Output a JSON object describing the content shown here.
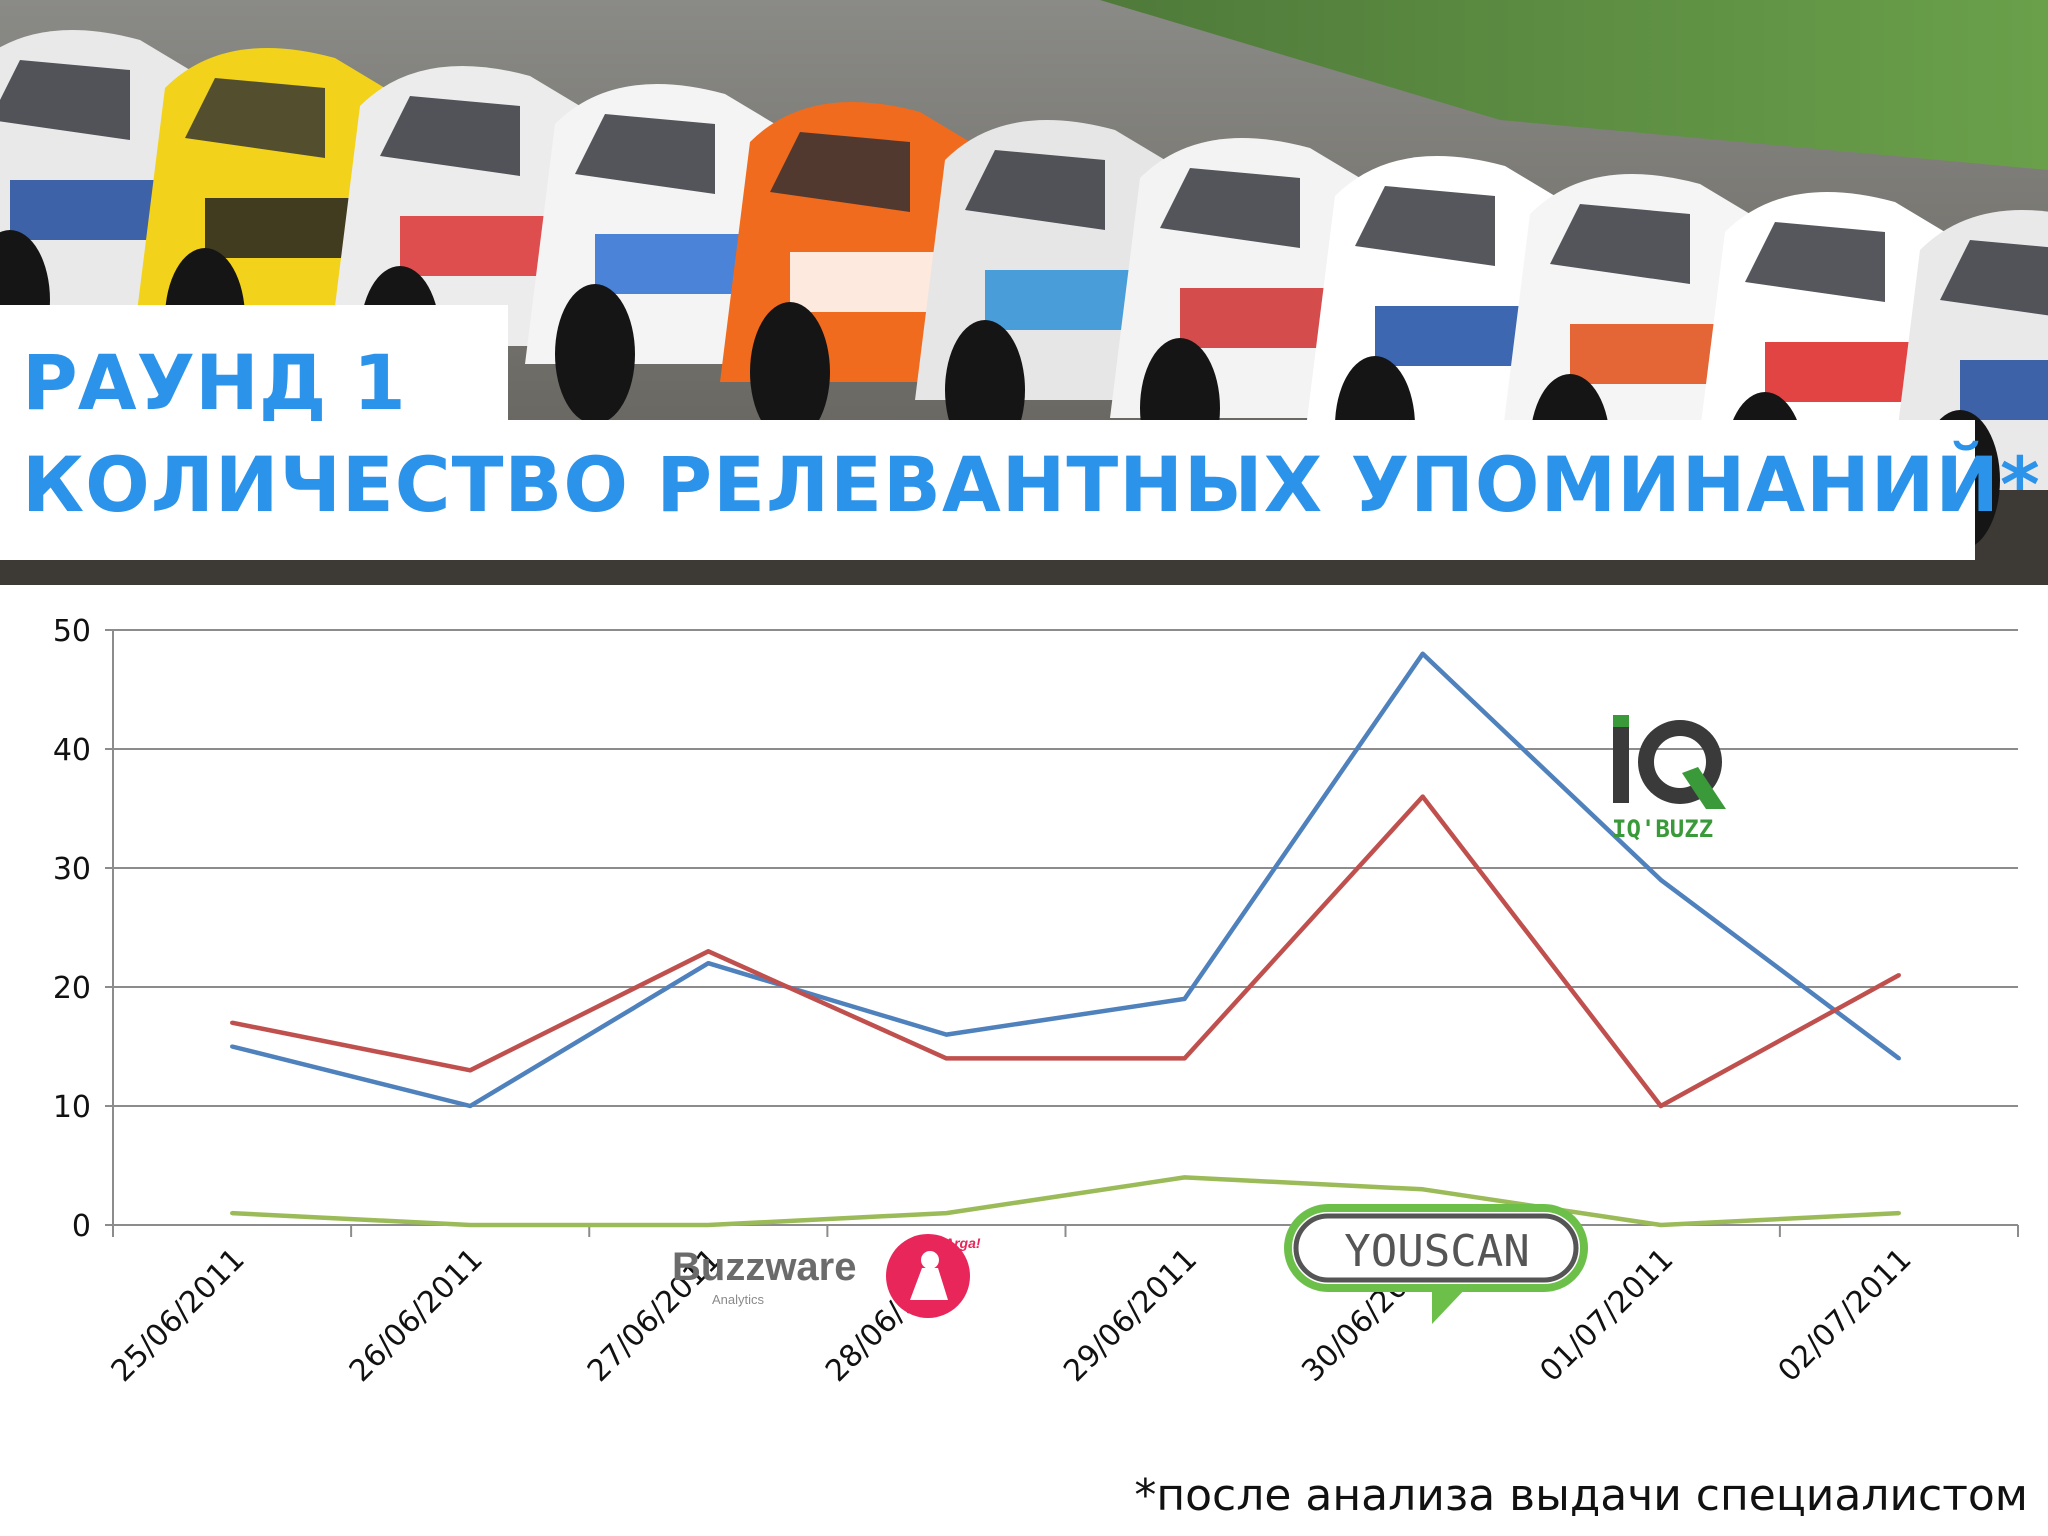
{
  "slide": {
    "title_line1": "РАУНД 1",
    "title_line2": "КОЛИЧЕСТВО РЕЛЕВАНТНЫХ  УПОМИНАНИЙ*",
    "footnote": "*после анализа выдачи специалистом",
    "background_image": "race-cars-photo",
    "title_color": "#2b93ea"
  },
  "logos": {
    "iqbuzz": {
      "mark": "IQ",
      "caption": "IQ'BUZZ",
      "color": "#3a9a3a",
      "icon": "iqbuzz-logo"
    },
    "buzzware": {
      "text": "Buzzware",
      "tagline": "Analytics",
      "badge": "Arga!",
      "icon": "buzzware-logo"
    },
    "youscan": {
      "text": "YOUSCAN",
      "icon": "youscan-logo"
    }
  },
  "chart_data": {
    "type": "line",
    "categories": [
      "25/06/2011",
      "26/06/2011",
      "27/06/2011",
      "28/06/2011",
      "29/06/2011",
      "30/06/2011",
      "01/07/2011",
      "02/07/2011"
    ],
    "series": [
      {
        "color": "#4f81bd",
        "values": [
          15,
          10,
          22,
          16,
          19,
          48,
          29,
          14
        ]
      },
      {
        "color": "#c0504d",
        "values": [
          17,
          13,
          23,
          14,
          14,
          36,
          10,
          21
        ]
      },
      {
        "color": "#9bbb59",
        "values": [
          1,
          0,
          0,
          1,
          4,
          3,
          0,
          1
        ]
      }
    ],
    "ylim": [
      0,
      50
    ],
    "yticks": [
      0,
      10,
      20,
      30,
      40,
      50
    ],
    "grid": true,
    "legend": "none"
  }
}
